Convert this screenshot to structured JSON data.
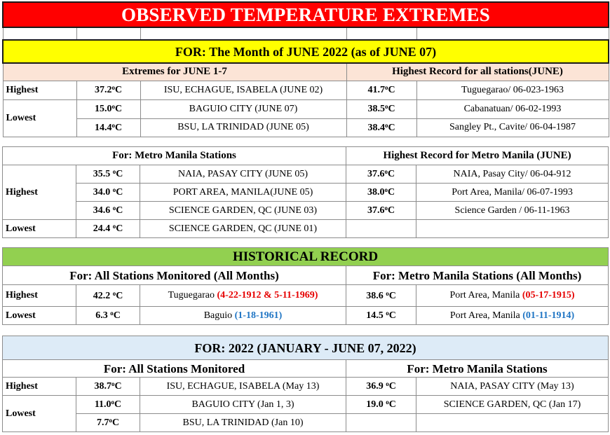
{
  "title": "OBSERVED TEMPERATURE EXTREMES",
  "month_header": "FOR:   The Month of JUNE 2022 (as of  JUNE 07)",
  "june": {
    "left_header": "Extremes for JUNE 1-7",
    "right_header": "Highest Record for all stations(JUNE)",
    "rows": [
      {
        "label": "Highest",
        "value": "37.2",
        "place": "ISU, ECHAGUE, ISABELA (JUNE 02)",
        "rec_value": "41.7",
        "rec_place": "Tuguegarao/ 06-023-1963"
      },
      {
        "label": "Lowest",
        "value": "15.0",
        "place": "BAGUIO CITY  (JUNE 07)",
        "rec_value": "38.5",
        "rec_place": "Cabanatuan/ 06-02-1993"
      },
      {
        "label": "",
        "value": "14.4",
        "place": "BSU, LA TRINIDAD (JUNE 05)",
        "rec_value": "38.4",
        "rec_place": "Sangley Pt., Cavite/ 06-04-1987"
      }
    ]
  },
  "metro": {
    "left_header": "For: Metro Manila Stations",
    "right_header": "Highest Record for Metro Manila (JUNE)",
    "highest_label": "Highest",
    "lowest_label": "Lowest",
    "rows": [
      {
        "value": "35.5",
        "place": "NAIA, PASAY CITY (JUNE 05)",
        "rec_value": "37.6",
        "rec_place": "NAIA, Pasay City/  06-04-912"
      },
      {
        "value": "34.0",
        "place": "PORT AREA, MANILA(JUNE 05)",
        "rec_value": "38.0",
        "rec_place": "Port Area, Manila/ 06-07-1993"
      },
      {
        "value": "34.6",
        "place": "SCIENCE GARDEN, QC (JUNE 03)",
        "rec_value": "37.6",
        "rec_place": "Science Garden / 06-11-1963"
      },
      {
        "value": "24.4",
        "place": "SCIENCE GARDEN, QC (JUNE 01)",
        "rec_value": "",
        "rec_place": ""
      }
    ]
  },
  "historical": {
    "header": "HISTORICAL RECORD",
    "left_header": "For:  All Stations Monitored (All Months)",
    "right_header": "For: Metro Manila Stations (All Months)",
    "highest": {
      "label": "Highest",
      "value": "42.2",
      "place": "Tuguegarao ",
      "date": "(4-22-1912 & 5-11-1969)",
      "mm_value": "38.6",
      "mm_place": "Port Area, Manila ",
      "mm_date": "(05-17-1915)"
    },
    "lowest": {
      "label": "Lowest",
      "value": "6.3",
      "place": "Baguio ",
      "date": "(1-18-1961)",
      "mm_value": "14.5",
      "mm_place": "Port Area, Manila ",
      "mm_date": "(01-11-1914)"
    }
  },
  "ytd": {
    "header": "FOR:    2022 (JANUARY - JUNE 07, 2022)",
    "left_header": "For:  All Stations Monitored",
    "right_header": "For: Metro Manila Stations",
    "rows": [
      {
        "label": "Highest",
        "value": "38.7",
        "place": "ISU, ECHAGUE, ISABELA (May 13)",
        "mm_value": "36.9",
        "mm_place": "NAIA, PASAY CITY (May 13)"
      },
      {
        "label": "Lowest",
        "value": "11.0",
        "place": "BAGUIO CITY  (Jan 1, 3)",
        "mm_value": "19.0",
        "mm_place": "SCIENCE GARDEN, QC (Jan 17)"
      },
      {
        "label": "",
        "value": "7.7",
        "place": "BSU, LA TRINIDAD (Jan 10)",
        "mm_value": "",
        "mm_place": ""
      }
    ]
  },
  "unit": "C",
  "degree": "o",
  "colors": {
    "title_bg": "#ff0000",
    "month_bg": "#ffff00",
    "peach_bg": "#fce4d6",
    "historical_bg": "#92d050",
    "ytd_bg": "#ddebf7",
    "red_date": "#e60000",
    "blue_date": "#1f75c4"
  }
}
